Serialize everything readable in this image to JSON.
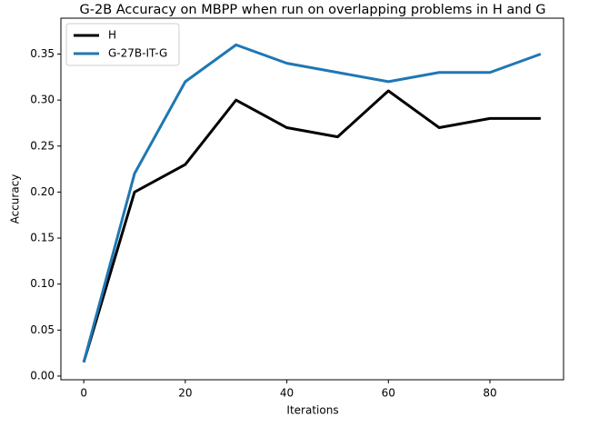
{
  "chart_data": {
    "type": "line",
    "title": "G-2B Accuracy on MBPP when run on overlapping problems in H and G",
    "x_label": "Iterations",
    "y_label": "Accuracy",
    "x": [
      0,
      10,
      20,
      30,
      40,
      50,
      60,
      70,
      80,
      90
    ],
    "series": [
      {
        "name": "H",
        "color": "#000000",
        "values": [
          0.015,
          0.2,
          0.23,
          0.3,
          0.27,
          0.26,
          0.31,
          0.27,
          0.28,
          0.28
        ]
      },
      {
        "name": "G-27B-IT-G",
        "color": "#1f77b4",
        "values": [
          0.015,
          0.22,
          0.32,
          0.36,
          0.34,
          0.33,
          0.32,
          0.33,
          0.33,
          0.35
        ]
      }
    ],
    "xlim": [
      -4.5,
      94.5
    ],
    "xticks": [
      0,
      20,
      40,
      60,
      80
    ],
    "ylim": [
      -0.004,
      0.389
    ],
    "yticks": [
      {
        "value": 0,
        "label": "0.00"
      },
      {
        "value": 0.05,
        "label": "0.05"
      },
      {
        "value": 0.1,
        "label": "0.10"
      },
      {
        "value": 0.15,
        "label": "0.15"
      },
      {
        "value": 0.2,
        "label": "0.20"
      },
      {
        "value": 0.25,
        "label": "0.25"
      },
      {
        "value": 0.3,
        "label": "0.30"
      },
      {
        "value": 0.35,
        "label": "0.35"
      }
    ],
    "legend": "upper left",
    "grid": false
  }
}
